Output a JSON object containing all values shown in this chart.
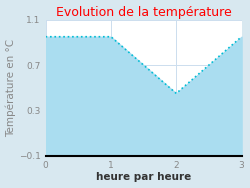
{
  "title": "Evolution de la température",
  "title_color": "#ff0000",
  "xlabel": "heure par heure",
  "ylabel": "Température en °C",
  "xlim": [
    0,
    3
  ],
  "ylim": [
    -0.1,
    1.1
  ],
  "xticks": [
    0,
    1,
    2,
    3
  ],
  "yticks": [
    -0.1,
    0.3,
    0.7,
    1.1
  ],
  "x": [
    0,
    1,
    2,
    3
  ],
  "y": [
    0.95,
    0.95,
    0.45,
    0.95
  ],
  "line_color": "#00bcd4",
  "fill_color": "#aaddf0",
  "fill_alpha": 1.0,
  "background_color": "#d8e8f0",
  "plot_background": "#ffffff",
  "line_style": "dotted",
  "line_width": 1.2,
  "grid_color": "#ccddee",
  "grid_linewidth": 0.7,
  "title_fontsize": 9,
  "label_fontsize": 7.5,
  "tick_fontsize": 6.5,
  "ylabel_color": "#888888",
  "tick_color": "#888888"
}
